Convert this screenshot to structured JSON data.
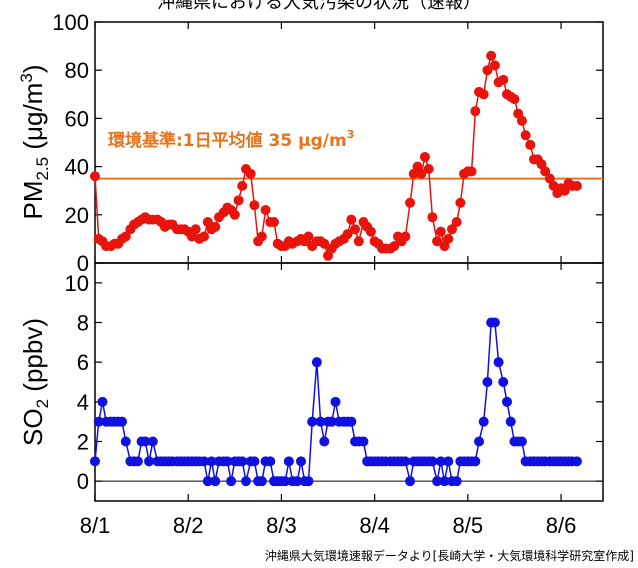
{
  "title": "沖縄県における大気汚染の状況（速報）",
  "source_note": "沖縄県大気環境速報データより[長崎大学・大気環境科学研究室作成]",
  "chart_data": [
    {
      "type": "line",
      "ylabel": {
        "main": "PM",
        "sub": "2.5",
        "unit_open": " (μg/m",
        "unit_sup": "3",
        "unit_close": ")"
      },
      "ylim": [
        0,
        100
      ],
      "yticks": [
        0,
        20,
        40,
        60,
        80,
        100
      ],
      "xlim": [
        0,
        5.45
      ],
      "xticks": [
        {
          "value": 0,
          "label": "8/1"
        },
        {
          "value": 1,
          "label": "8/2"
        },
        {
          "value": 2,
          "label": "8/3"
        },
        {
          "value": 3,
          "label": "8/4"
        },
        {
          "value": 4,
          "label": "8/5"
        },
        {
          "value": 5,
          "label": "8/6"
        }
      ],
      "reference_line": {
        "value": 35,
        "color": "#e8731c",
        "label_main": "環境基準:1日平均値 35 μg/m",
        "label_sup": "3"
      },
      "series": [
        {
          "color": "#e8140c",
          "points": [
            [
              0,
              36
            ],
            [
              0.04,
              10
            ],
            [
              0.08,
              9
            ],
            [
              0.12,
              7
            ],
            [
              0.17,
              7
            ],
            [
              0.21,
              8
            ],
            [
              0.25,
              8
            ],
            [
              0.29,
              10
            ],
            [
              0.33,
              11
            ],
            [
              0.38,
              14
            ],
            [
              0.42,
              16
            ],
            [
              0.46,
              17
            ],
            [
              0.5,
              18
            ],
            [
              0.54,
              19
            ],
            [
              0.58,
              18
            ],
            [
              0.62,
              18
            ],
            [
              0.67,
              18
            ],
            [
              0.71,
              17
            ],
            [
              0.75,
              15
            ],
            [
              0.79,
              16
            ],
            [
              0.83,
              16
            ],
            [
              0.88,
              14
            ],
            [
              0.92,
              14
            ],
            [
              0.96,
              14
            ],
            [
              1,
              13
            ],
            [
              1.04,
              11
            ],
            [
              1.08,
              14
            ],
            [
              1.12,
              10
            ],
            [
              1.17,
              11
            ],
            [
              1.21,
              17
            ],
            [
              1.25,
              14
            ],
            [
              1.29,
              15
            ],
            [
              1.33,
              19
            ],
            [
              1.38,
              21
            ],
            [
              1.42,
              23
            ],
            [
              1.46,
              22
            ],
            [
              1.5,
              20
            ],
            [
              1.54,
              26
            ],
            [
              1.58,
              32
            ],
            [
              1.62,
              39
            ],
            [
              1.67,
              37
            ],
            [
              1.71,
              24
            ],
            [
              1.75,
              9
            ],
            [
              1.79,
              11
            ],
            [
              1.83,
              22
            ],
            [
              1.88,
              17
            ],
            [
              1.92,
              17
            ],
            [
              1.96,
              8
            ],
            [
              2,
              7
            ],
            [
              2.04,
              7
            ],
            [
              2.08,
              9
            ],
            [
              2.12,
              8
            ],
            [
              2.17,
              9
            ],
            [
              2.21,
              10
            ],
            [
              2.25,
              9
            ],
            [
              2.29,
              11
            ],
            [
              2.33,
              7
            ],
            [
              2.38,
              9
            ],
            [
              2.42,
              9
            ],
            [
              2.46,
              8
            ],
            [
              2.5,
              3
            ],
            [
              2.54,
              6
            ],
            [
              2.58,
              8
            ],
            [
              2.62,
              9
            ],
            [
              2.67,
              10
            ],
            [
              2.71,
              12
            ],
            [
              2.75,
              18
            ],
            [
              2.79,
              14
            ],
            [
              2.83,
              9
            ],
            [
              2.88,
              17
            ],
            [
              2.92,
              15
            ],
            [
              2.96,
              13
            ],
            [
              3,
              9
            ],
            [
              3.04,
              8
            ],
            [
              3.08,
              6
            ],
            [
              3.12,
              6
            ],
            [
              3.17,
              6
            ],
            [
              3.21,
              7
            ],
            [
              3.25,
              11
            ],
            [
              3.29,
              9
            ],
            [
              3.33,
              11
            ],
            [
              3.38,
              25
            ],
            [
              3.42,
              37
            ],
            [
              3.46,
              40
            ],
            [
              3.5,
              37
            ],
            [
              3.54,
              44
            ],
            [
              3.58,
              39
            ],
            [
              3.62,
              19
            ],
            [
              3.67,
              9
            ],
            [
              3.71,
              13
            ],
            [
              3.75,
              7
            ],
            [
              3.79,
              10
            ],
            [
              3.83,
              14
            ],
            [
              3.88,
              17
            ],
            [
              3.92,
              25
            ],
            [
              3.96,
              37
            ],
            [
              4,
              38
            ],
            [
              4.04,
              38
            ],
            [
              4.08,
              63
            ],
            [
              4.12,
              71
            ],
            [
              4.17,
              70
            ],
            [
              4.21,
              80
            ],
            [
              4.25,
              86
            ],
            [
              4.29,
              82
            ],
            [
              4.33,
              75
            ],
            [
              4.38,
              76
            ],
            [
              4.42,
              70
            ],
            [
              4.46,
              69
            ],
            [
              4.5,
              68
            ],
            [
              4.54,
              62
            ],
            [
              4.58,
              59
            ],
            [
              4.62,
              53
            ],
            [
              4.67,
              49
            ],
            [
              4.71,
              43
            ],
            [
              4.75,
              43
            ],
            [
              4.79,
              41
            ],
            [
              4.83,
              38
            ],
            [
              4.88,
              35
            ],
            [
              4.92,
              32
            ],
            [
              4.96,
              29
            ],
            [
              5,
              31
            ],
            [
              5.04,
              30
            ],
            [
              5.08,
              33
            ],
            [
              5.12,
              32
            ],
            [
              5.17,
              32
            ]
          ]
        }
      ]
    },
    {
      "type": "line",
      "ylabel": {
        "main": "SO",
        "sub": "2",
        "unit_open": " (ppbv)"
      },
      "ylim": [
        -1,
        11
      ],
      "yticks": [
        0,
        2,
        4,
        6,
        8,
        10
      ],
      "xlim": [
        0,
        5.45
      ],
      "xticks": [
        {
          "value": 0,
          "label": "8/1"
        },
        {
          "value": 1,
          "label": "8/2"
        },
        {
          "value": 2,
          "label": "8/3"
        },
        {
          "value": 3,
          "label": "8/4"
        },
        {
          "value": 4,
          "label": "8/5"
        },
        {
          "value": 5,
          "label": "8/6"
        }
      ],
      "reference_line": {
        "value": 0,
        "color": "#000000"
      },
      "series": [
        {
          "color": "#1010e0",
          "points": [
            [
              0,
              1
            ],
            [
              0.04,
              3
            ],
            [
              0.08,
              4
            ],
            [
              0.12,
              3
            ],
            [
              0.17,
              3
            ],
            [
              0.21,
              3
            ],
            [
              0.25,
              3
            ],
            [
              0.29,
              3
            ],
            [
              0.33,
              2
            ],
            [
              0.38,
              1
            ],
            [
              0.42,
              1
            ],
            [
              0.46,
              1
            ],
            [
              0.5,
              2
            ],
            [
              0.54,
              2
            ],
            [
              0.58,
              1
            ],
            [
              0.62,
              2
            ],
            [
              0.67,
              1
            ],
            [
              0.71,
              1
            ],
            [
              0.75,
              1
            ],
            [
              0.79,
              1
            ],
            [
              0.83,
              1
            ],
            [
              0.88,
              1
            ],
            [
              0.92,
              1
            ],
            [
              0.96,
              1
            ],
            [
              1,
              1
            ],
            [
              1.04,
              1
            ],
            [
              1.08,
              1
            ],
            [
              1.12,
              1
            ],
            [
              1.17,
              1
            ],
            [
              1.21,
              0
            ],
            [
              1.25,
              1
            ],
            [
              1.29,
              0
            ],
            [
              1.33,
              1
            ],
            [
              1.38,
              1
            ],
            [
              1.42,
              1
            ],
            [
              1.46,
              0
            ],
            [
              1.5,
              1
            ],
            [
              1.54,
              1
            ],
            [
              1.58,
              1
            ],
            [
              1.62,
              0
            ],
            [
              1.67,
              1
            ],
            [
              1.71,
              1
            ],
            [
              1.75,
              0
            ],
            [
              1.79,
              0
            ],
            [
              1.83,
              1
            ],
            [
              1.88,
              1
            ],
            [
              1.92,
              0
            ],
            [
              1.96,
              0
            ],
            [
              2,
              0
            ],
            [
              2.04,
              0
            ],
            [
              2.08,
              1
            ],
            [
              2.12,
              0
            ],
            [
              2.17,
              0
            ],
            [
              2.21,
              1
            ],
            [
              2.25,
              0
            ],
            [
              2.29,
              0
            ],
            [
              2.33,
              3
            ],
            [
              2.38,
              6
            ],
            [
              2.42,
              3
            ],
            [
              2.46,
              2
            ],
            [
              2.5,
              3
            ],
            [
              2.54,
              3
            ],
            [
              2.58,
              4
            ],
            [
              2.62,
              3
            ],
            [
              2.67,
              3
            ],
            [
              2.71,
              3
            ],
            [
              2.75,
              3
            ],
            [
              2.79,
              2
            ],
            [
              2.83,
              2
            ],
            [
              2.88,
              2
            ],
            [
              2.92,
              1
            ],
            [
              2.96,
              1
            ],
            [
              3,
              1
            ],
            [
              3.04,
              1
            ],
            [
              3.08,
              1
            ],
            [
              3.12,
              1
            ],
            [
              3.17,
              1
            ],
            [
              3.21,
              1
            ],
            [
              3.25,
              1
            ],
            [
              3.29,
              1
            ],
            [
              3.33,
              1
            ],
            [
              3.38,
              0
            ],
            [
              3.42,
              1
            ],
            [
              3.46,
              1
            ],
            [
              3.5,
              1
            ],
            [
              3.54,
              1
            ],
            [
              3.58,
              1
            ],
            [
              3.62,
              1
            ],
            [
              3.67,
              0
            ],
            [
              3.71,
              1
            ],
            [
              3.75,
              0
            ],
            [
              3.79,
              1
            ],
            [
              3.83,
              0
            ],
            [
              3.88,
              0
            ],
            [
              3.92,
              1
            ],
            [
              3.96,
              1
            ],
            [
              4,
              1
            ],
            [
              4.04,
              1
            ],
            [
              4.08,
              1
            ],
            [
              4.12,
              2
            ],
            [
              4.17,
              3
            ],
            [
              4.21,
              5
            ],
            [
              4.25,
              8
            ],
            [
              4.29,
              8
            ],
            [
              4.33,
              6
            ],
            [
              4.38,
              5
            ],
            [
              4.42,
              4
            ],
            [
              4.46,
              3
            ],
            [
              4.5,
              2
            ],
            [
              4.54,
              2
            ],
            [
              4.58,
              2
            ],
            [
              4.62,
              1
            ],
            [
              4.67,
              1
            ],
            [
              4.71,
              1
            ],
            [
              4.75,
              1
            ],
            [
              4.79,
              1
            ],
            [
              4.83,
              1
            ],
            [
              4.88,
              1
            ],
            [
              4.92,
              1
            ],
            [
              4.96,
              1
            ],
            [
              5,
              1
            ],
            [
              5.04,
              1
            ],
            [
              5.08,
              1
            ],
            [
              5.12,
              1
            ],
            [
              5.17,
              1
            ]
          ]
        }
      ]
    }
  ]
}
